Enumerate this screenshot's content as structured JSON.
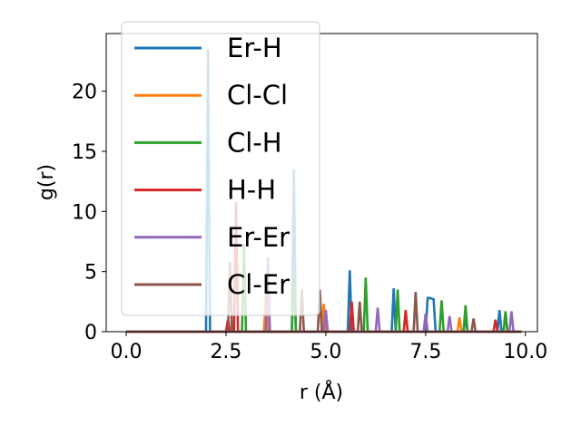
{
  "chart_data": {
    "type": "line",
    "title": "",
    "xlabel": "r (Å)",
    "ylabel": "g(r)",
    "xlim": [
      -0.5,
      10.3
    ],
    "ylim": [
      0,
      24.8
    ],
    "xticks": [
      0.0,
      2.5,
      5.0,
      7.5,
      10.0
    ],
    "xtick_labels": [
      "0.0",
      "2.5",
      "5.0",
      "7.5",
      "10.0"
    ],
    "yticks": [
      0,
      5,
      10,
      15,
      20
    ],
    "ytick_labels": [
      "0",
      "5",
      "10",
      "15",
      "20"
    ],
    "grid": false,
    "legend_position": "upper left",
    "series": [
      {
        "name": "Er-H",
        "color": "#1f77b4",
        "x": [
          0,
          1.95,
          2.0,
          2.05,
          2.1,
          2.15,
          2.2,
          4.1,
          4.15,
          4.2,
          4.25,
          4.3,
          5.5,
          5.55,
          5.6,
          5.65,
          6.65,
          6.7,
          6.75,
          6.8,
          7.5,
          7.55,
          7.6,
          7.7,
          7.75,
          8.45,
          8.5,
          8.55,
          9.3,
          9.35,
          9.4,
          9.9
        ],
        "y": [
          0,
          0,
          0,
          23.5,
          0,
          0,
          0,
          0,
          0,
          13.5,
          0,
          0,
          0,
          0,
          5.1,
          0,
          0,
          3.6,
          0,
          0,
          0,
          2.8,
          2.8,
          2.7,
          0,
          0,
          1.2,
          0,
          0,
          1.8,
          0,
          0
        ]
      },
      {
        "name": "Cl-Cl",
        "color": "#ff7f0e",
        "x": [
          0,
          3.45,
          3.5,
          3.55,
          4.9,
          4.95,
          5.0,
          6.95,
          7.0,
          7.05,
          8.3,
          8.35,
          8.4,
          9.45,
          9.5,
          9.55,
          9.9
        ],
        "y": [
          0,
          0,
          3.2,
          0,
          0,
          2.3,
          0,
          0,
          1.6,
          0,
          0,
          1.2,
          0,
          0,
          1.4,
          0,
          0
        ]
      },
      {
        "name": "Cl-H",
        "color": "#2ca02c",
        "x": [
          0,
          2.9,
          2.95,
          3.0,
          4.15,
          4.2,
          4.25,
          5.95,
          6.0,
          6.05,
          6.75,
          6.8,
          6.85,
          7.85,
          7.9,
          7.95,
          8.45,
          8.5,
          8.55,
          9.45,
          9.5,
          9.55,
          9.9
        ],
        "y": [
          0,
          0,
          7.3,
          0,
          0,
          5.0,
          0,
          0,
          4.5,
          0,
          0,
          3.5,
          0,
          0,
          2.6,
          0,
          0,
          2.2,
          0,
          0,
          1.7,
          0,
          0
        ]
      },
      {
        "name": "H-H",
        "color": "#d62728",
        "x": [
          0,
          2.5,
          2.55,
          2.6,
          2.7,
          2.75,
          2.8,
          5.6,
          5.65,
          5.7,
          6.95,
          7.0,
          7.05,
          9.2,
          9.25,
          9.3,
          9.9
        ],
        "y": [
          0,
          0,
          1.0,
          0,
          0,
          10.8,
          0,
          0,
          2.5,
          0,
          0,
          1.8,
          0,
          0,
          1.0,
          0,
          0
        ]
      },
      {
        "name": "Er-Er",
        "color": "#9467bd",
        "x": [
          0,
          3.5,
          3.55,
          3.6,
          4.95,
          5.0,
          5.05,
          6.25,
          6.3,
          6.35,
          7.45,
          7.5,
          7.55,
          8.05,
          8.1,
          8.15,
          9.6,
          9.65,
          9.7,
          9.9
        ],
        "y": [
          0,
          0,
          6.2,
          0,
          0,
          1.8,
          0,
          0,
          2.0,
          0,
          0,
          1.5,
          0,
          0,
          1.3,
          0,
          0,
          1.7,
          0,
          0
        ]
      },
      {
        "name": "Cl-Er",
        "color": "#8c564b",
        "x": [
          0,
          2.55,
          2.6,
          2.65,
          4.35,
          4.4,
          4.45,
          4.8,
          4.85,
          4.9,
          5.8,
          5.85,
          5.9,
          7.2,
          7.25,
          7.3,
          8.65,
          8.7,
          8.75,
          9.9
        ],
        "y": [
          0,
          0,
          5.8,
          0,
          0,
          3.5,
          0,
          0,
          3.5,
          0,
          0,
          2.5,
          0,
          0,
          3.3,
          0,
          0,
          1.1,
          0,
          0
        ]
      }
    ]
  }
}
